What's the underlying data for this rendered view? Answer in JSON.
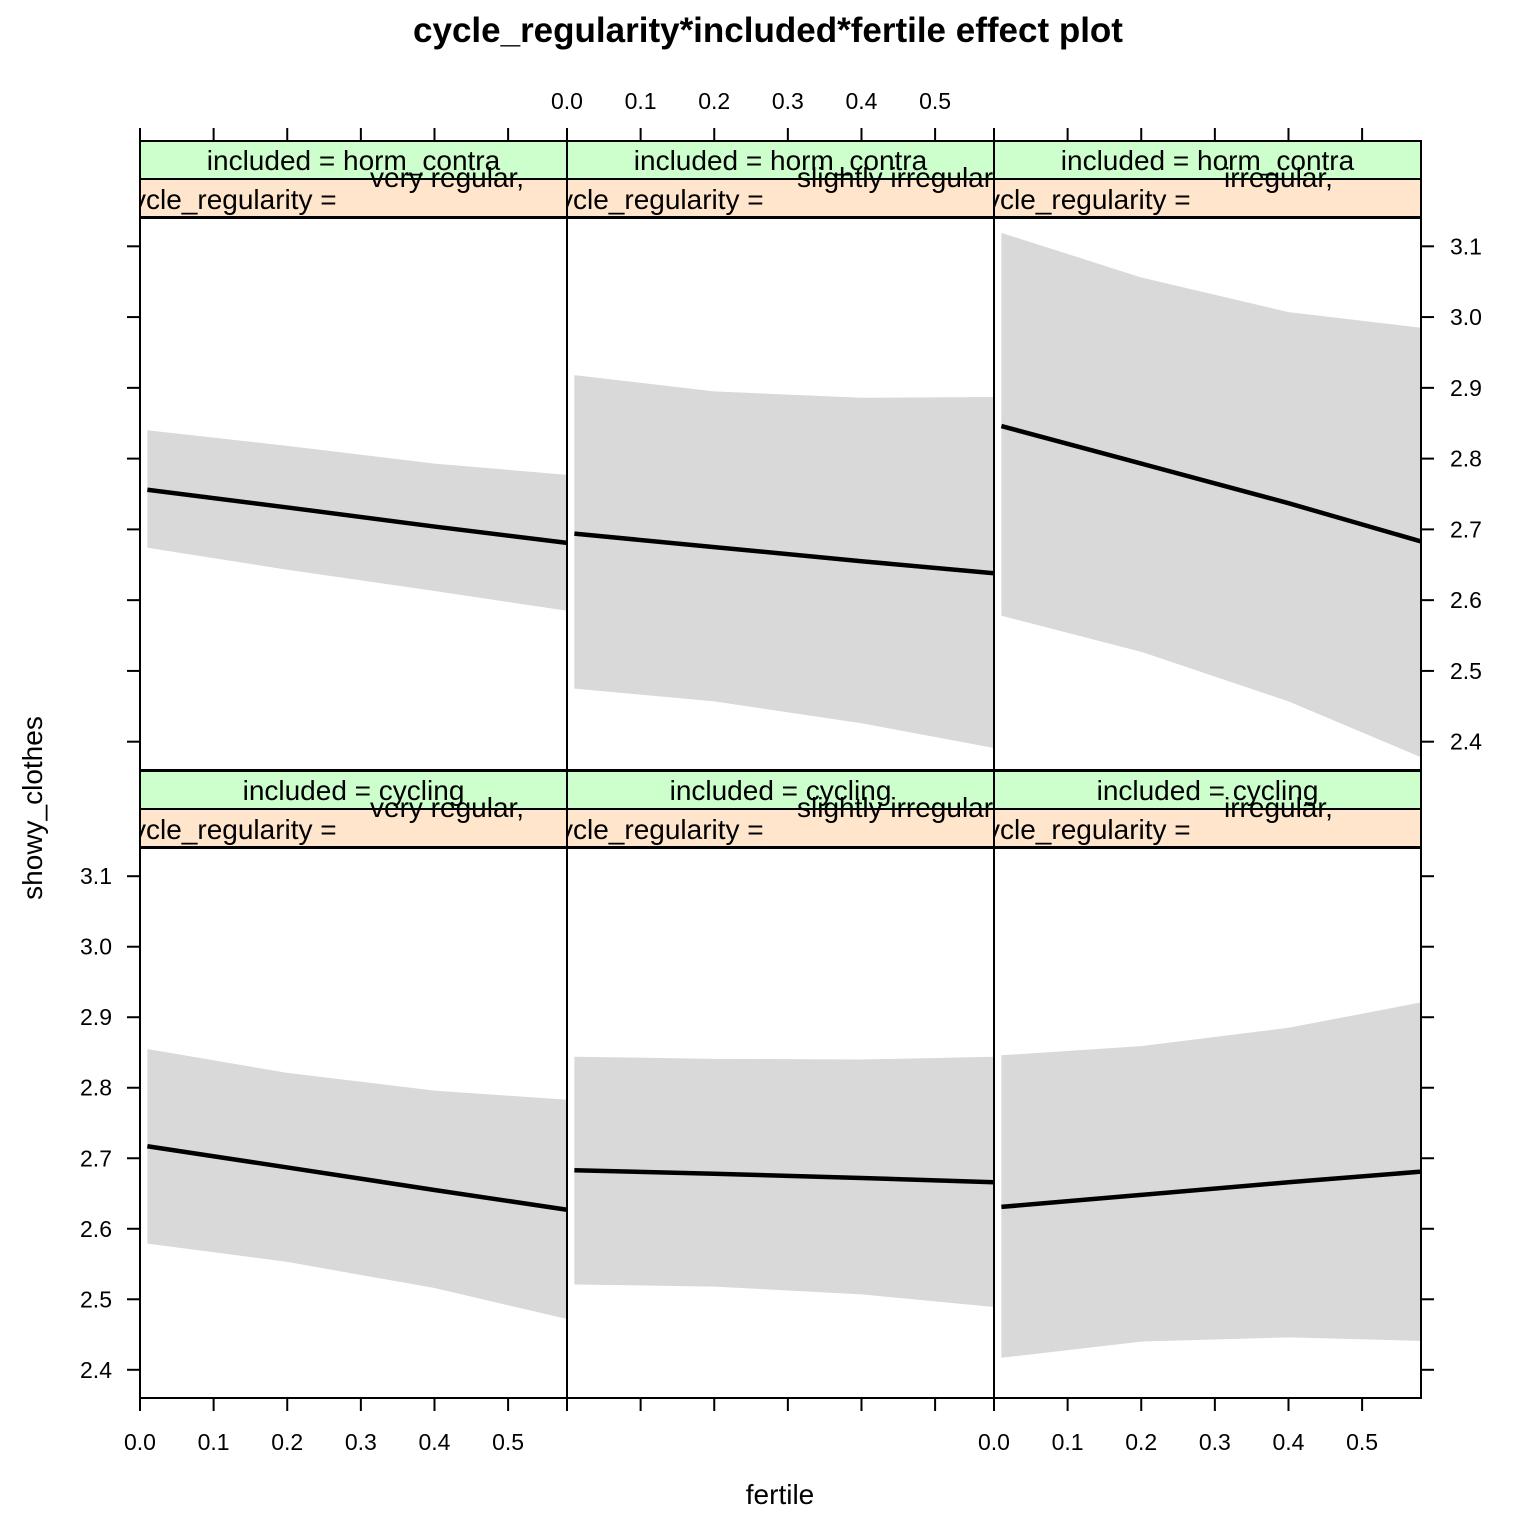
{
  "chart_data": {
    "type": "line",
    "title": "cycle_regularity*included*fertile effect plot",
    "xlabel": "fertile",
    "ylabel": "showy_clothes",
    "xlim": [
      0,
      0.58
    ],
    "ylim": [
      2.36,
      3.14
    ],
    "x_ticks": [
      0.0,
      0.1,
      0.2,
      0.3,
      0.4,
      0.5
    ],
    "x_tick_labels": [
      "0.0",
      "0.1",
      "0.2",
      "0.3",
      "0.4",
      "0.5"
    ],
    "y_ticks": [
      2.4,
      2.5,
      2.6,
      2.7,
      2.8,
      2.9,
      3.0,
      3.1
    ],
    "y_tick_labels": [
      "2.4",
      "2.5",
      "2.6",
      "2.7",
      "2.8",
      "2.9",
      "3.0",
      "3.1"
    ],
    "strip_colors": {
      "included": "#ccffcc",
      "cycle_regularity": "#ffe5cc"
    },
    "band_color": "#d9d9d9",
    "line_color": "#000000",
    "cycle_regularity_prefix": "cycle_regularity =",
    "panels": [
      {
        "included_label": "included = cycling",
        "cycle_regularity_value": "very regular,",
        "x": [
          0.01,
          0.2,
          0.4,
          0.58
        ],
        "fit": [
          2.717,
          2.687,
          2.655,
          2.627
        ],
        "lower": [
          2.579,
          2.553,
          2.516,
          2.472
        ],
        "upper": [
          2.855,
          2.821,
          2.796,
          2.783
        ]
      },
      {
        "included_label": "included = cycling",
        "cycle_regularity_value": "slightly irregular",
        "x": [
          0.01,
          0.2,
          0.4,
          0.58
        ],
        "fit": [
          2.683,
          2.678,
          2.672,
          2.666
        ],
        "lower": [
          2.521,
          2.518,
          2.507,
          2.489
        ],
        "upper": [
          2.844,
          2.841,
          2.84,
          2.844
        ]
      },
      {
        "included_label": "included = cycling",
        "cycle_regularity_value": "irregular,",
        "x": [
          0.01,
          0.2,
          0.4,
          0.58
        ],
        "fit": [
          2.631,
          2.648,
          2.666,
          2.681
        ],
        "lower": [
          2.417,
          2.44,
          2.446,
          2.441
        ],
        "upper": [
          2.846,
          2.859,
          2.885,
          2.921
        ]
      },
      {
        "included_label": "included = horm_contra",
        "cycle_regularity_value": "very regular,",
        "x": [
          0.01,
          0.2,
          0.4,
          0.58
        ],
        "fit": [
          2.756,
          2.731,
          2.704,
          2.681
        ],
        "lower": [
          2.674,
          2.643,
          2.613,
          2.585
        ],
        "upper": [
          2.84,
          2.818,
          2.793,
          2.777
        ]
      },
      {
        "included_label": "included = horm_contra",
        "cycle_regularity_value": "slightly irregular",
        "x": [
          0.01,
          0.2,
          0.4,
          0.58
        ],
        "fit": [
          2.694,
          2.675,
          2.655,
          2.638
        ],
        "lower": [
          2.475,
          2.457,
          2.426,
          2.391
        ],
        "upper": [
          2.918,
          2.895,
          2.886,
          2.887
        ]
      },
      {
        "included_label": "included = horm_contra",
        "cycle_regularity_value": "irregular,",
        "x": [
          0.01,
          0.2,
          0.4,
          0.58
        ],
        "fit": [
          2.846,
          2.793,
          2.737,
          2.683
        ],
        "lower": [
          2.578,
          2.527,
          2.457,
          2.378
        ],
        "upper": [
          3.119,
          3.056,
          3.007,
          2.985
        ]
      }
    ]
  }
}
